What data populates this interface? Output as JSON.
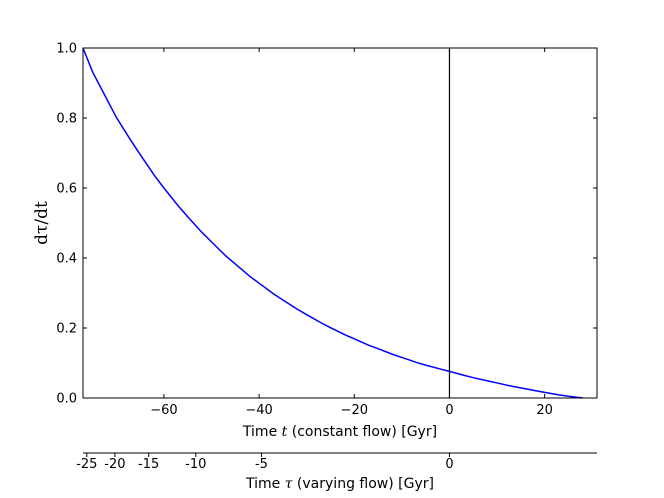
{
  "chart_data": {
    "type": "line",
    "title": "",
    "xlabel": {
      "pre": "Time ",
      "sym": "t",
      "post": " (constant flow) [Gyr]"
    },
    "ylabel": "dτ/dt",
    "x2label": {
      "pre": "Time ",
      "sym": "τ",
      "post": " (varying flow) [Gyr]"
    },
    "xlim": [
      -77,
      31
    ],
    "ylim": [
      0,
      1.0
    ],
    "xticks": [
      -60,
      -40,
      -20,
      0,
      20
    ],
    "xtick_labels": [
      "−60",
      "−40",
      "−20",
      "0",
      "20"
    ],
    "yticks": [
      0.0,
      0.2,
      0.4,
      0.6,
      0.8,
      1.0
    ],
    "ytick_labels": [
      "0.0",
      "0.2",
      "0.4",
      "0.6",
      "0.8",
      "1.0"
    ],
    "x2ticks": [
      {
        "label": "-25",
        "t": -76.2
      },
      {
        "label": "-20",
        "t": -70.3
      },
      {
        "label": "-15",
        "t": -63.2
      },
      {
        "label": "-10",
        "t": -53.3
      },
      {
        "label": "-5",
        "t": -39.5
      },
      {
        "label": "0",
        "t": 0
      }
    ],
    "vline_x": 0,
    "series": [
      {
        "color": "#0000ff",
        "x": [
          -77,
          -75,
          -72,
          -70,
          -67,
          -65,
          -62,
          -60,
          -57,
          -55,
          -52,
          -50,
          -47,
          -45,
          -42,
          -40,
          -37,
          -35,
          -32,
          -30,
          -27,
          -25,
          -22,
          -20,
          -17,
          -15,
          -12,
          -10,
          -7,
          -5,
          -2,
          0,
          3,
          5,
          8,
          10,
          13,
          15,
          18,
          20,
          23,
          25,
          28
        ],
        "y": [
          1.0,
          0.932,
          0.854,
          0.802,
          0.737,
          0.696,
          0.636,
          0.6,
          0.549,
          0.518,
          0.473,
          0.446,
          0.406,
          0.383,
          0.348,
          0.328,
          0.298,
          0.28,
          0.254,
          0.238,
          0.215,
          0.201,
          0.181,
          0.169,
          0.151,
          0.141,
          0.125,
          0.116,
          0.102,
          0.094,
          0.083,
          0.076,
          0.065,
          0.058,
          0.049,
          0.043,
          0.034,
          0.029,
          0.021,
          0.016,
          0.009,
          0.005,
          0.0
        ]
      }
    ]
  }
}
